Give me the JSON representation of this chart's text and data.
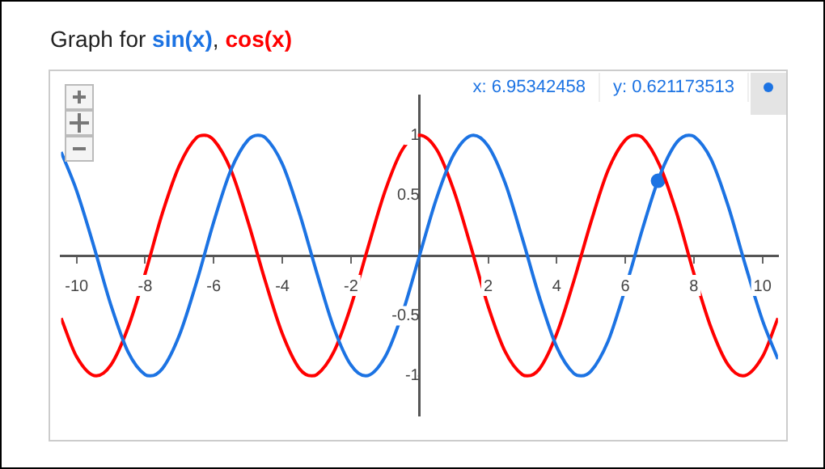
{
  "chart_data": {
    "type": "line",
    "title": "Graph for",
    "xlim": [
      -10.45,
      10.45
    ],
    "ylim": [
      -1.33,
      1.33
    ],
    "xticks": [
      -10,
      -8,
      -6,
      -4,
      -2,
      2,
      4,
      6,
      8,
      10
    ],
    "yticks": [
      -1,
      -0.5,
      0.5,
      1
    ],
    "annotations": [
      ",",
      "x: 6.95342458",
      "y: 0.621173513"
    ],
    "series": [
      {
        "name": "sin(x)",
        "color": "#1c73e3",
        "x": [
          -10.45,
          -10,
          -9.5,
          -9,
          -8.5,
          -8,
          -7.854,
          -7.5,
          -7,
          -6.5,
          -6,
          -5.5,
          -5,
          -4.712,
          -4.5,
          -4,
          -3.5,
          -3,
          -2.5,
          -2,
          -1.571,
          -1,
          -0.5,
          0,
          0.5,
          1,
          1.571,
          2,
          2.5,
          3,
          3.5,
          4,
          4.5,
          4.712,
          5,
          5.5,
          5.8,
          6.2,
          6.5,
          7,
          7.5,
          7.854,
          8,
          8.5,
          9,
          9.5,
          10,
          10.45
        ],
        "values": [
          0.86,
          0.54,
          0.08,
          -0.41,
          -0.8,
          -0.99,
          -1,
          -0.94,
          -0.66,
          -0.22,
          0.28,
          0.71,
          0.96,
          1,
          0.98,
          0.76,
          0.35,
          -0.14,
          -0.6,
          -0.91,
          -1,
          -0.84,
          -0.48,
          0,
          0.48,
          0.84,
          1,
          0.91,
          0.6,
          0.14,
          -0.35,
          -0.76,
          -0.98,
          -1,
          -0.96,
          -0.71,
          -0.46,
          -0.08,
          0.22,
          0.66,
          0.94,
          1,
          0.99,
          0.8,
          0.41,
          -0.08,
          -0.54,
          -0.86
        ]
      },
      {
        "name": "cos(x)",
        "color": "#ff0000",
        "x": [
          -10.45,
          -10,
          -9.425,
          -9,
          -8.5,
          -8,
          -7.5,
          -7,
          -6.5,
          -6.283,
          -6,
          -5.5,
          -5,
          -4.5,
          -4,
          -3.5,
          -3.142,
          -3,
          -2.5,
          -2,
          -1.5,
          -1,
          -0.5,
          0,
          0.5,
          1,
          1.5,
          2,
          2.5,
          3,
          3.142,
          3.5,
          4,
          4.5,
          5,
          5.5,
          6,
          6.283,
          6.5,
          7,
          7.5,
          8,
          8.5,
          9,
          9.425,
          10,
          10.45
        ],
        "values": [
          -0.52,
          -0.84,
          -1,
          -0.91,
          -0.6,
          -0.15,
          0.35,
          0.75,
          0.98,
          1,
          0.96,
          0.71,
          0.28,
          -0.21,
          -0.65,
          -0.94,
          -1,
          -0.99,
          -0.8,
          -0.42,
          0.07,
          0.54,
          0.88,
          1,
          0.88,
          0.54,
          0.07,
          -0.42,
          -0.8,
          -0.99,
          -1,
          -0.94,
          -0.65,
          -0.21,
          0.28,
          0.71,
          0.96,
          1,
          0.98,
          0.75,
          0.35,
          -0.15,
          -0.6,
          -0.91,
          -1,
          -0.84,
          -0.52
        ]
      },
      {
        "type": "scatter",
        "color": "#1c73e3",
        "marker": "circle",
        "x": [
          6.95342458
        ],
        "values": [
          0.621173513
        ]
      }
    ]
  }
}
